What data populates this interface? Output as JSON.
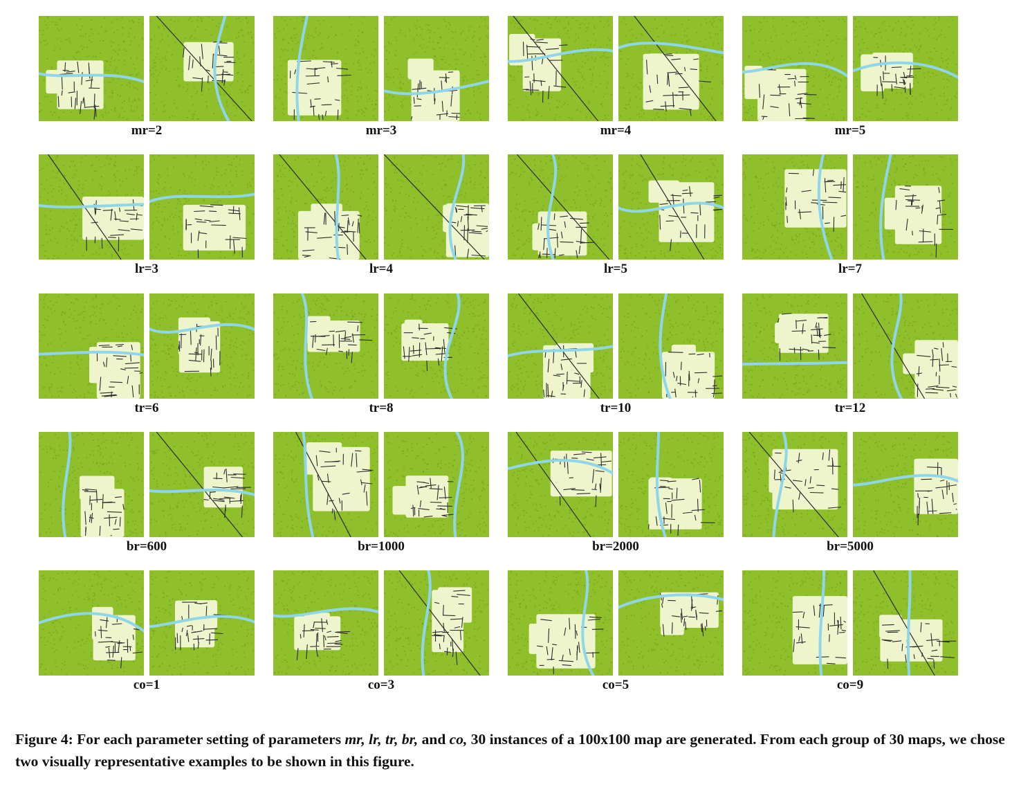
{
  "figure": {
    "panel_labels": [
      [
        "mr=2",
        "mr=3",
        "mr=4",
        "mr=5"
      ],
      [
        "lr=3",
        "lr=4",
        "lr=5",
        "lr=7"
      ],
      [
        "tr=6",
        "tr=8",
        "tr=10",
        "tr=12"
      ],
      [
        "br=600",
        "br=1000",
        "br=2000",
        "br=5000"
      ],
      [
        "co=1",
        "co=3",
        "co=5",
        "co=9"
      ]
    ],
    "colors": {
      "forest": "#8fbf2a",
      "forest_dark": "#6e9e16",
      "clearing": "#eef5cc",
      "river": "#8fd6ea",
      "road": "#2a2a2a"
    }
  },
  "caption": {
    "lead": "Figure 4: For each parameter setting of parameters ",
    "params": "mr, lr, tr, br,",
    "and": " and ",
    "last_param": "co,",
    "rest": " 30 instances of a 100x100 map are generated. From each group of 30 maps, we chose two visually representative examples to be shown in this figure."
  }
}
